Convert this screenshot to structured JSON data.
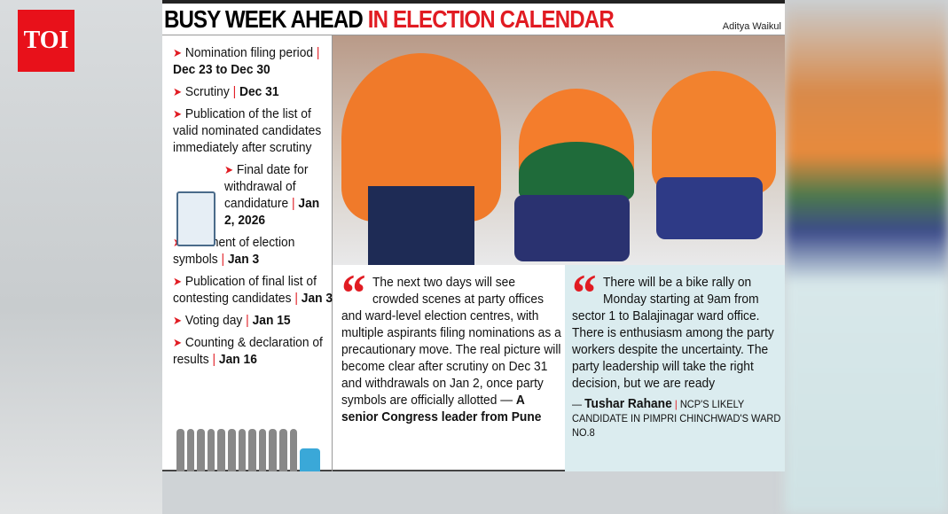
{
  "logo": "TOI",
  "headline": {
    "part1": "BUSY WEEK AHEAD",
    "part2": "IN ELECTION CALENDAR"
  },
  "byline": "Aditya Waikul",
  "schedule": [
    {
      "text": "Nomination filing period",
      "date": "Dec 23 to Dec 30"
    },
    {
      "text": "Scrutiny",
      "date": "Dec 31"
    },
    {
      "text": "Publication of the list of valid nominated candidates immediately after scrutiny",
      "date": ""
    },
    {
      "text": "Final date for withdrawal of candidature",
      "date": "Jan 2, 2026"
    },
    {
      "text": "Allotment of election symbols",
      "date": "Jan 3"
    },
    {
      "text": "Publication of final list of contesting candidates",
      "date": "Jan 3"
    },
    {
      "text": "Voting day",
      "date": "Jan 15"
    },
    {
      "text": "Counting & declaration of results",
      "date": "Jan 16"
    }
  ],
  "quotes": [
    {
      "text": "The next two days will see crowded scenes at party offices and ward-level election centres, with multiple aspirants filing nominations as a precautionary move. The real picture will become clear after scrutiny on Dec 31 and withdrawals on Jan 2, once party symbols are officially allotted",
      "speaker": "A senior Congress leader from Pune",
      "role": ""
    },
    {
      "text": "There will be a bike rally on Monday starting at 9am from sector 1 to Balajinagar ward office. There is enthusiasm among the party workers despite the uncertainty. The party leadership will take the right decision, but we are ready",
      "speaker": "Tushar Rahane",
      "role": "NCP's likely candidate in Pimpri Chinchwad's ward No.8"
    }
  ],
  "colors": {
    "accent": "#e11b22",
    "quote_bg": "#dbecef"
  },
  "icons": [
    "arrow-bullet-icon",
    "calendar-checklist-icon",
    "quote-mark-icon",
    "voter-queue-icon"
  ]
}
